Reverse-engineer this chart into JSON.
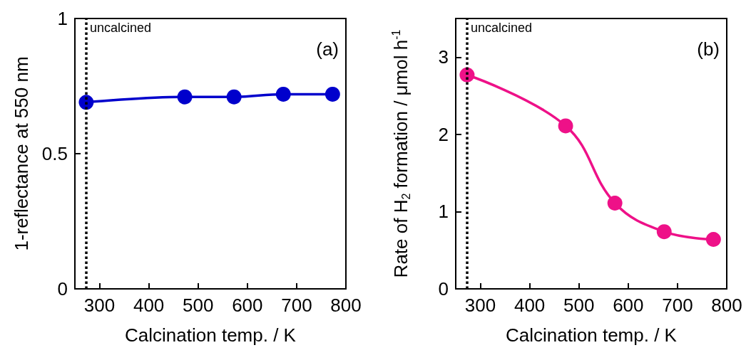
{
  "chart_data": [
    {
      "type": "line",
      "xlabel": "Calcination temp. / K",
      "ylabel": "1-reflectance at 550 nm",
      "x": [
        273,
        473,
        573,
        673,
        773
      ],
      "series": [
        {
          "color": "#0000cc",
          "values": [
            0.69,
            0.71,
            0.71,
            0.72,
            0.72
          ]
        }
      ],
      "xlim": [
        250,
        800
      ],
      "xticks": [
        300,
        400,
        500,
        600,
        700,
        800
      ],
      "ylim": [
        0,
        1
      ],
      "yticks": [
        0,
        0.5,
        1
      ],
      "grid": false,
      "marker": "circle",
      "line_style": "solid",
      "ref_lines": [
        {
          "axis": "x",
          "value": 273,
          "label": "uncalcined",
          "color": "#000000",
          "line_style": "dotted"
        }
      ],
      "annotations": [
        "(a)"
      ]
    },
    {
      "type": "line",
      "xlabel": "Calcination temp. / K",
      "ylabel": "Rate of H$_{2}$ formation / μmol h$^{-1}$",
      "x": [
        273,
        473,
        573,
        673,
        773
      ],
      "series": [
        {
          "color": "#ee1188",
          "values": [
            2.77,
            2.11,
            1.11,
            0.74,
            0.64
          ]
        }
      ],
      "xlim": [
        250,
        800
      ],
      "xticks": [
        300,
        400,
        500,
        600,
        700,
        800
      ],
      "ylim": [
        0,
        3.5
      ],
      "yticks": [
        0,
        1,
        2,
        3
      ],
      "grid": false,
      "marker": "circle",
      "line_style": "solid",
      "ref_lines": [
        {
          "axis": "x",
          "value": 273,
          "label": "uncalcined",
          "color": "#000000",
          "line_style": "dotted"
        }
      ],
      "annotations": [
        "(b)"
      ]
    }
  ]
}
